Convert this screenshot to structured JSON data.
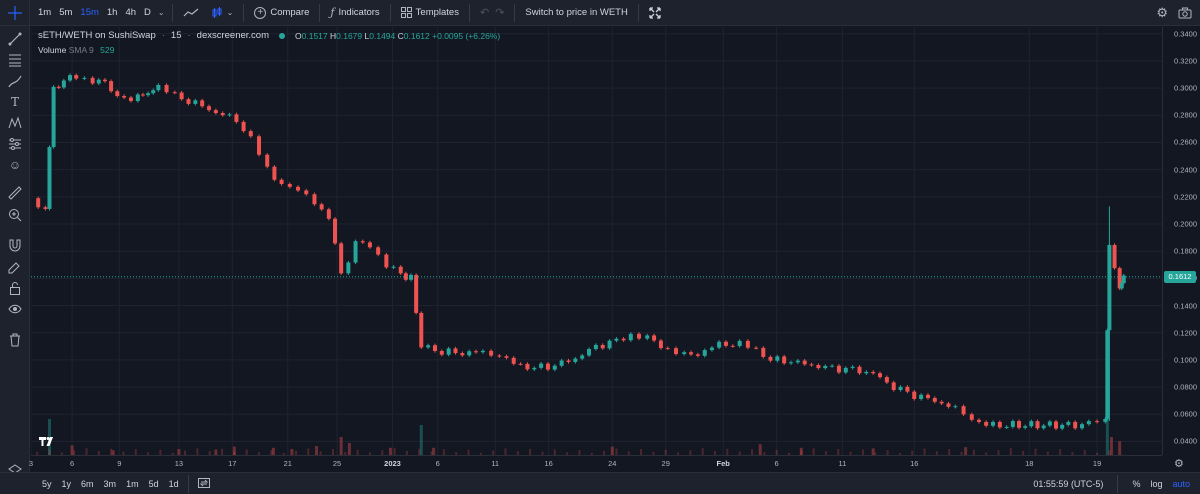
{
  "toolbar": {
    "timeframes": [
      "1m",
      "5m",
      "15m",
      "1h",
      "4h",
      "D"
    ],
    "active_timeframe": "15m",
    "compare_label": "Compare",
    "indicators_label": "Indicators",
    "templates_label": "Templates",
    "switch_label": "Switch to price in WETH"
  },
  "legend": {
    "symbol": "sETH/WETH on SushiSwap",
    "interval": "15",
    "source": "dexscreener.com",
    "open_label": "O",
    "open": "0.1517",
    "high_label": "H",
    "high": "0.1679",
    "low_label": "L",
    "low": "0.1494",
    "close_label": "C",
    "close": "0.1612",
    "change": "+0.0095 (+6.26%)",
    "volume_label": "Volume",
    "sma_label": "SMA 9",
    "volume_value": "529"
  },
  "price_axis": {
    "labels": [
      "0.3400",
      "0.3200",
      "0.3000",
      "0.2800",
      "0.2600",
      "0.2400",
      "0.2200",
      "0.2000",
      "0.1800",
      "0.1600",
      "0.1400",
      "0.1200",
      "0.1000",
      "0.0800",
      "0.0600",
      "0.0400"
    ],
    "current_price": "0.1612"
  },
  "time_axis": {
    "labels": [
      "3",
      "6",
      "9",
      "13",
      "17",
      "21",
      "25",
      "2023",
      "6",
      "11",
      "16",
      "24",
      "29",
      "Feb",
      "6",
      "11",
      "16",
      "18",
      "19"
    ]
  },
  "bottom": {
    "ranges": [
      "5y",
      "1y",
      "6m",
      "3m",
      "1m",
      "5d",
      "1d"
    ],
    "clock": "01:55:59 (UTC-5)",
    "percent_label": "%",
    "log_label": "log",
    "auto_label": "auto"
  },
  "colors": {
    "up": "#26a69a",
    "down": "#ef5350",
    "background": "#131722",
    "accent": "#2962ff"
  },
  "chart_data": {
    "type": "candlestick",
    "symbol": "sETH/WETH",
    "ylim": [
      0.03,
      0.345
    ],
    "x": [
      "3",
      "6",
      "9",
      "13",
      "17",
      "21",
      "25",
      "2023",
      "6",
      "11",
      "16",
      "24",
      "29",
      "Feb",
      "6",
      "11",
      "16",
      "18",
      "19"
    ],
    "close_path": [
      [
        0.0,
        0.219
      ],
      [
        0.7,
        0.211
      ],
      [
        1.1,
        0.3
      ],
      [
        1.6,
        0.305
      ],
      [
        2.2,
        0.31
      ],
      [
        3.0,
        0.305
      ],
      [
        3.6,
        0.305
      ],
      [
        4.2,
        0.293
      ],
      [
        5.2,
        0.293
      ],
      [
        5.7,
        0.297
      ],
      [
        6.2,
        0.301
      ],
      [
        7.0,
        0.294
      ],
      [
        8.0,
        0.289
      ],
      [
        9.0,
        0.282
      ],
      [
        10.0,
        0.277
      ],
      [
        10.7,
        0.262
      ],
      [
        11.5,
        0.24
      ],
      [
        12.2,
        0.23
      ],
      [
        13.0,
        0.224
      ],
      [
        13.8,
        0.215
      ],
      [
        14.5,
        0.206
      ],
      [
        15.1,
        0.163
      ],
      [
        15.8,
        0.186
      ],
      [
        16.5,
        0.184
      ],
      [
        17.3,
        0.171
      ],
      [
        18.0,
        0.163
      ],
      [
        18.5,
        0.16
      ],
      [
        19.0,
        0.11
      ],
      [
        20.0,
        0.106
      ],
      [
        21.0,
        0.105
      ],
      [
        22.0,
        0.106
      ],
      [
        22.8,
        0.104
      ],
      [
        23.5,
        0.097
      ],
      [
        24.5,
        0.094
      ],
      [
        25.5,
        0.096
      ],
      [
        26.5,
        0.101
      ],
      [
        27.5,
        0.11
      ],
      [
        28.5,
        0.114
      ],
      [
        29.2,
        0.119
      ],
      [
        30.0,
        0.116
      ],
      [
        31.0,
        0.108
      ],
      [
        31.8,
        0.103
      ],
      [
        32.8,
        0.106
      ],
      [
        33.5,
        0.112
      ],
      [
        34.5,
        0.111
      ],
      [
        35.3,
        0.108
      ],
      [
        36.0,
        0.1
      ],
      [
        37.0,
        0.099
      ],
      [
        38.0,
        0.096
      ],
      [
        39.0,
        0.094
      ],
      [
        40.0,
        0.093
      ],
      [
        41.0,
        0.09
      ],
      [
        42.0,
        0.08
      ],
      [
        43.0,
        0.074
      ],
      [
        44.0,
        0.07
      ],
      [
        45.0,
        0.064
      ],
      [
        45.8,
        0.057
      ],
      [
        46.5,
        0.052
      ],
      [
        47.5,
        0.052
      ],
      [
        49.0,
        0.052
      ],
      [
        50.5,
        0.052
      ],
      [
        51.5,
        0.053
      ],
      [
        52.3,
        0.055
      ],
      [
        52.5,
        0.185
      ],
      [
        53.0,
        0.152
      ],
      [
        53.2,
        0.161
      ]
    ],
    "x_axis_max": 53.6,
    "volume": [
      [
        0.9,
        0.6
      ],
      [
        2.0,
        0.16
      ],
      [
        4.0,
        0.08
      ],
      [
        7.2,
        0.1
      ],
      [
        9.0,
        0.09
      ],
      [
        9.9,
        0.14
      ],
      [
        11.8,
        0.12
      ],
      [
        12.7,
        0.1
      ],
      [
        13.9,
        0.15
      ],
      [
        15.1,
        0.3
      ],
      [
        15.5,
        0.2
      ],
      [
        17.5,
        0.12
      ],
      [
        19.0,
        0.5
      ],
      [
        19.6,
        0.12
      ],
      [
        28.3,
        0.14
      ],
      [
        35.5,
        0.18
      ],
      [
        37.5,
        0.12
      ],
      [
        41.0,
        0.11
      ],
      [
        45.5,
        0.13
      ],
      [
        52.4,
        0.6
      ],
      [
        52.6,
        0.3
      ],
      [
        53.0,
        0.23
      ]
    ]
  }
}
